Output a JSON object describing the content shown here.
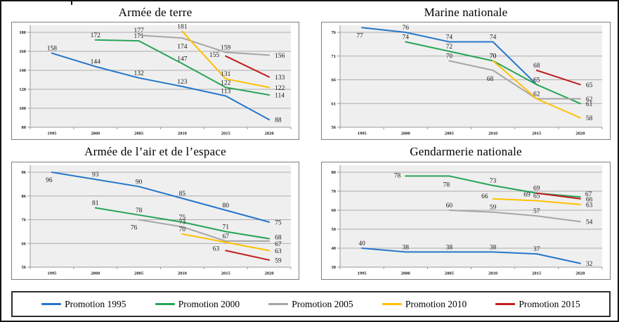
{
  "legend": {
    "items": [
      {
        "label": "Promotion 1995",
        "color": "#2577C9"
      },
      {
        "label": "Promotion 2000",
        "color": "#27A457"
      },
      {
        "label": "Promotion 2005",
        "color": "#A6A6A6"
      },
      {
        "label": "Promotion 2010",
        "color": "#FFC000"
      },
      {
        "label": "Promotion 2015",
        "color": "#C01E1E"
      }
    ]
  },
  "style_colors": {
    "plot_fill": "#EFEFEF",
    "gridline": "#ACACAC",
    "axis": "#9A9A9A",
    "label_text": "#1b1b1b"
  },
  "chart_data": [
    {
      "type": "line",
      "title": "Armée de terre",
      "x_labels": [
        "1995",
        "2000",
        "2005",
        "2010",
        "2015",
        "2020"
      ],
      "ylim": [
        80,
        180
      ],
      "y_step": 20,
      "grid": true,
      "legend_position": "none",
      "series": [
        {
          "name": "Promotion 1995",
          "color": "#2577C9",
          "start_index": 0,
          "values": [
            158,
            144,
            132,
            123,
            113,
            88
          ],
          "labels": [
            "158",
            "144",
            "132",
            "123",
            "113",
            "88"
          ]
        },
        {
          "name": "Promotion 2000",
          "color": "#27A457",
          "start_index": 1,
          "values": [
            172,
            171,
            147,
            122,
            114
          ],
          "labels": [
            "172",
            "171",
            "147",
            "122",
            "114"
          ]
        },
        {
          "name": "Promotion 2005",
          "color": "#A6A6A6",
          "start_index": 2,
          "values": [
            177,
            174,
            159,
            156
          ],
          "labels": [
            "177",
            "174",
            "159",
            "156"
          ]
        },
        {
          "name": "Promotion 2010",
          "color": "#FFC000",
          "start_index": 3,
          "values": [
            181,
            131,
            122
          ],
          "labels": [
            "181",
            "131",
            "122"
          ]
        },
        {
          "name": "Promotion 2015",
          "color": "#C01E1E",
          "start_index": 4,
          "values": [
            155,
            133
          ],
          "labels": [
            "155",
            "133"
          ]
        }
      ]
    },
    {
      "type": "line",
      "title": "Marine nationale",
      "x_labels": [
        "1995",
        "2000",
        "2005",
        "2010",
        "2015",
        "2020"
      ],
      "ylim": [
        56,
        76
      ],
      "y_step": 5,
      "grid": true,
      "legend_position": "none",
      "series": [
        {
          "name": "Promotion 1995",
          "color": "#2577C9",
          "start_index": 0,
          "values": [
            77,
            76,
            74,
            74,
            65
          ],
          "labels": [
            "77",
            "76",
            "74",
            "74",
            "65"
          ]
        },
        {
          "name": "Promotion 2000",
          "color": "#27A457",
          "start_index": 1,
          "values": [
            74,
            72,
            70,
            65,
            61
          ],
          "labels": [
            "74",
            "72",
            "70",
            null,
            "61"
          ]
        },
        {
          "name": "Promotion 2005",
          "color": "#A6A6A6",
          "start_index": 2,
          "values": [
            70,
            68,
            62,
            62
          ],
          "labels": [
            "70",
            "68",
            "62",
            "62"
          ]
        },
        {
          "name": "Promotion 2010",
          "color": "#FFC000",
          "start_index": 3,
          "values": [
            70,
            62,
            58
          ],
          "labels": [
            "70",
            null,
            "58"
          ]
        },
        {
          "name": "Promotion 2015",
          "color": "#C01E1E",
          "start_index": 4,
          "values": [
            68,
            65
          ],
          "labels": [
            "68",
            "65"
          ]
        }
      ]
    },
    {
      "type": "line",
      "title": "Armée de l’air et de l’espace",
      "x_labels": [
        "1995",
        "2000",
        "2005",
        "2010",
        "2015",
        "2020"
      ],
      "ylim": [
        56,
        96
      ],
      "y_step": 10,
      "grid": true,
      "legend_position": "none",
      "series": [
        {
          "name": "Promotion 1995",
          "color": "#2577C9",
          "start_index": 0,
          "values": [
            96,
            93,
            90,
            85,
            80,
            75
          ],
          "labels": [
            "96",
            "93",
            "90",
            "85",
            "80",
            "75"
          ]
        },
        {
          "name": "Promotion 2000",
          "color": "#27A457",
          "start_index": 1,
          "values": [
            81,
            78,
            75,
            71,
            68
          ],
          "labels": [
            "81",
            "78",
            "75",
            "71",
            "68"
          ]
        },
        {
          "name": "Promotion 2005",
          "color": "#A6A6A6",
          "start_index": 2,
          "values": [
            76,
            73,
            67,
            67
          ],
          "labels": [
            "76",
            "73",
            "67",
            "67"
          ]
        },
        {
          "name": "Promotion 2010",
          "color": "#FFC000",
          "start_index": 3,
          "values": [
            70,
            66.5,
            63
          ],
          "labels": [
            "70",
            null,
            "63"
          ]
        },
        {
          "name": "Promotion 2015",
          "color": "#C01E1E",
          "start_index": 4,
          "values": [
            63,
            59
          ],
          "labels": [
            "63",
            "59"
          ]
        }
      ]
    },
    {
      "type": "line",
      "title": "Gendarmerie nationale",
      "x_labels": [
        "1995",
        "2000",
        "2005",
        "2010",
        "2015",
        "2020"
      ],
      "ylim": [
        30,
        80
      ],
      "y_step": 10,
      "grid": true,
      "legend_position": "none",
      "series": [
        {
          "name": "Promotion 1995",
          "color": "#2577C9",
          "start_index": 0,
          "values": [
            40,
            38,
            38,
            38,
            37,
            32
          ],
          "labels": [
            "40",
            "38",
            "38",
            "38",
            "37",
            "32"
          ]
        },
        {
          "name": "Promotion 2000",
          "color": "#27A457",
          "start_index": 1,
          "values": [
            78,
            78,
            73,
            69,
            67
          ],
          "labels": [
            "78",
            "78",
            "73",
            "69",
            "67"
          ]
        },
        {
          "name": "Promotion 2005",
          "color": "#A6A6A6",
          "start_index": 2,
          "values": [
            60,
            59,
            57,
            54
          ],
          "labels": [
            "60",
            "59",
            "57",
            "54"
          ]
        },
        {
          "name": "Promotion 2010",
          "color": "#FFC000",
          "start_index": 3,
          "values": [
            66,
            65,
            63
          ],
          "labels": [
            "66",
            "65",
            "63"
          ]
        },
        {
          "name": "Promotion 2015",
          "color": "#C01E1E",
          "start_index": 4,
          "values": [
            69,
            66
          ],
          "labels": [
            "69",
            "66"
          ]
        }
      ]
    }
  ]
}
